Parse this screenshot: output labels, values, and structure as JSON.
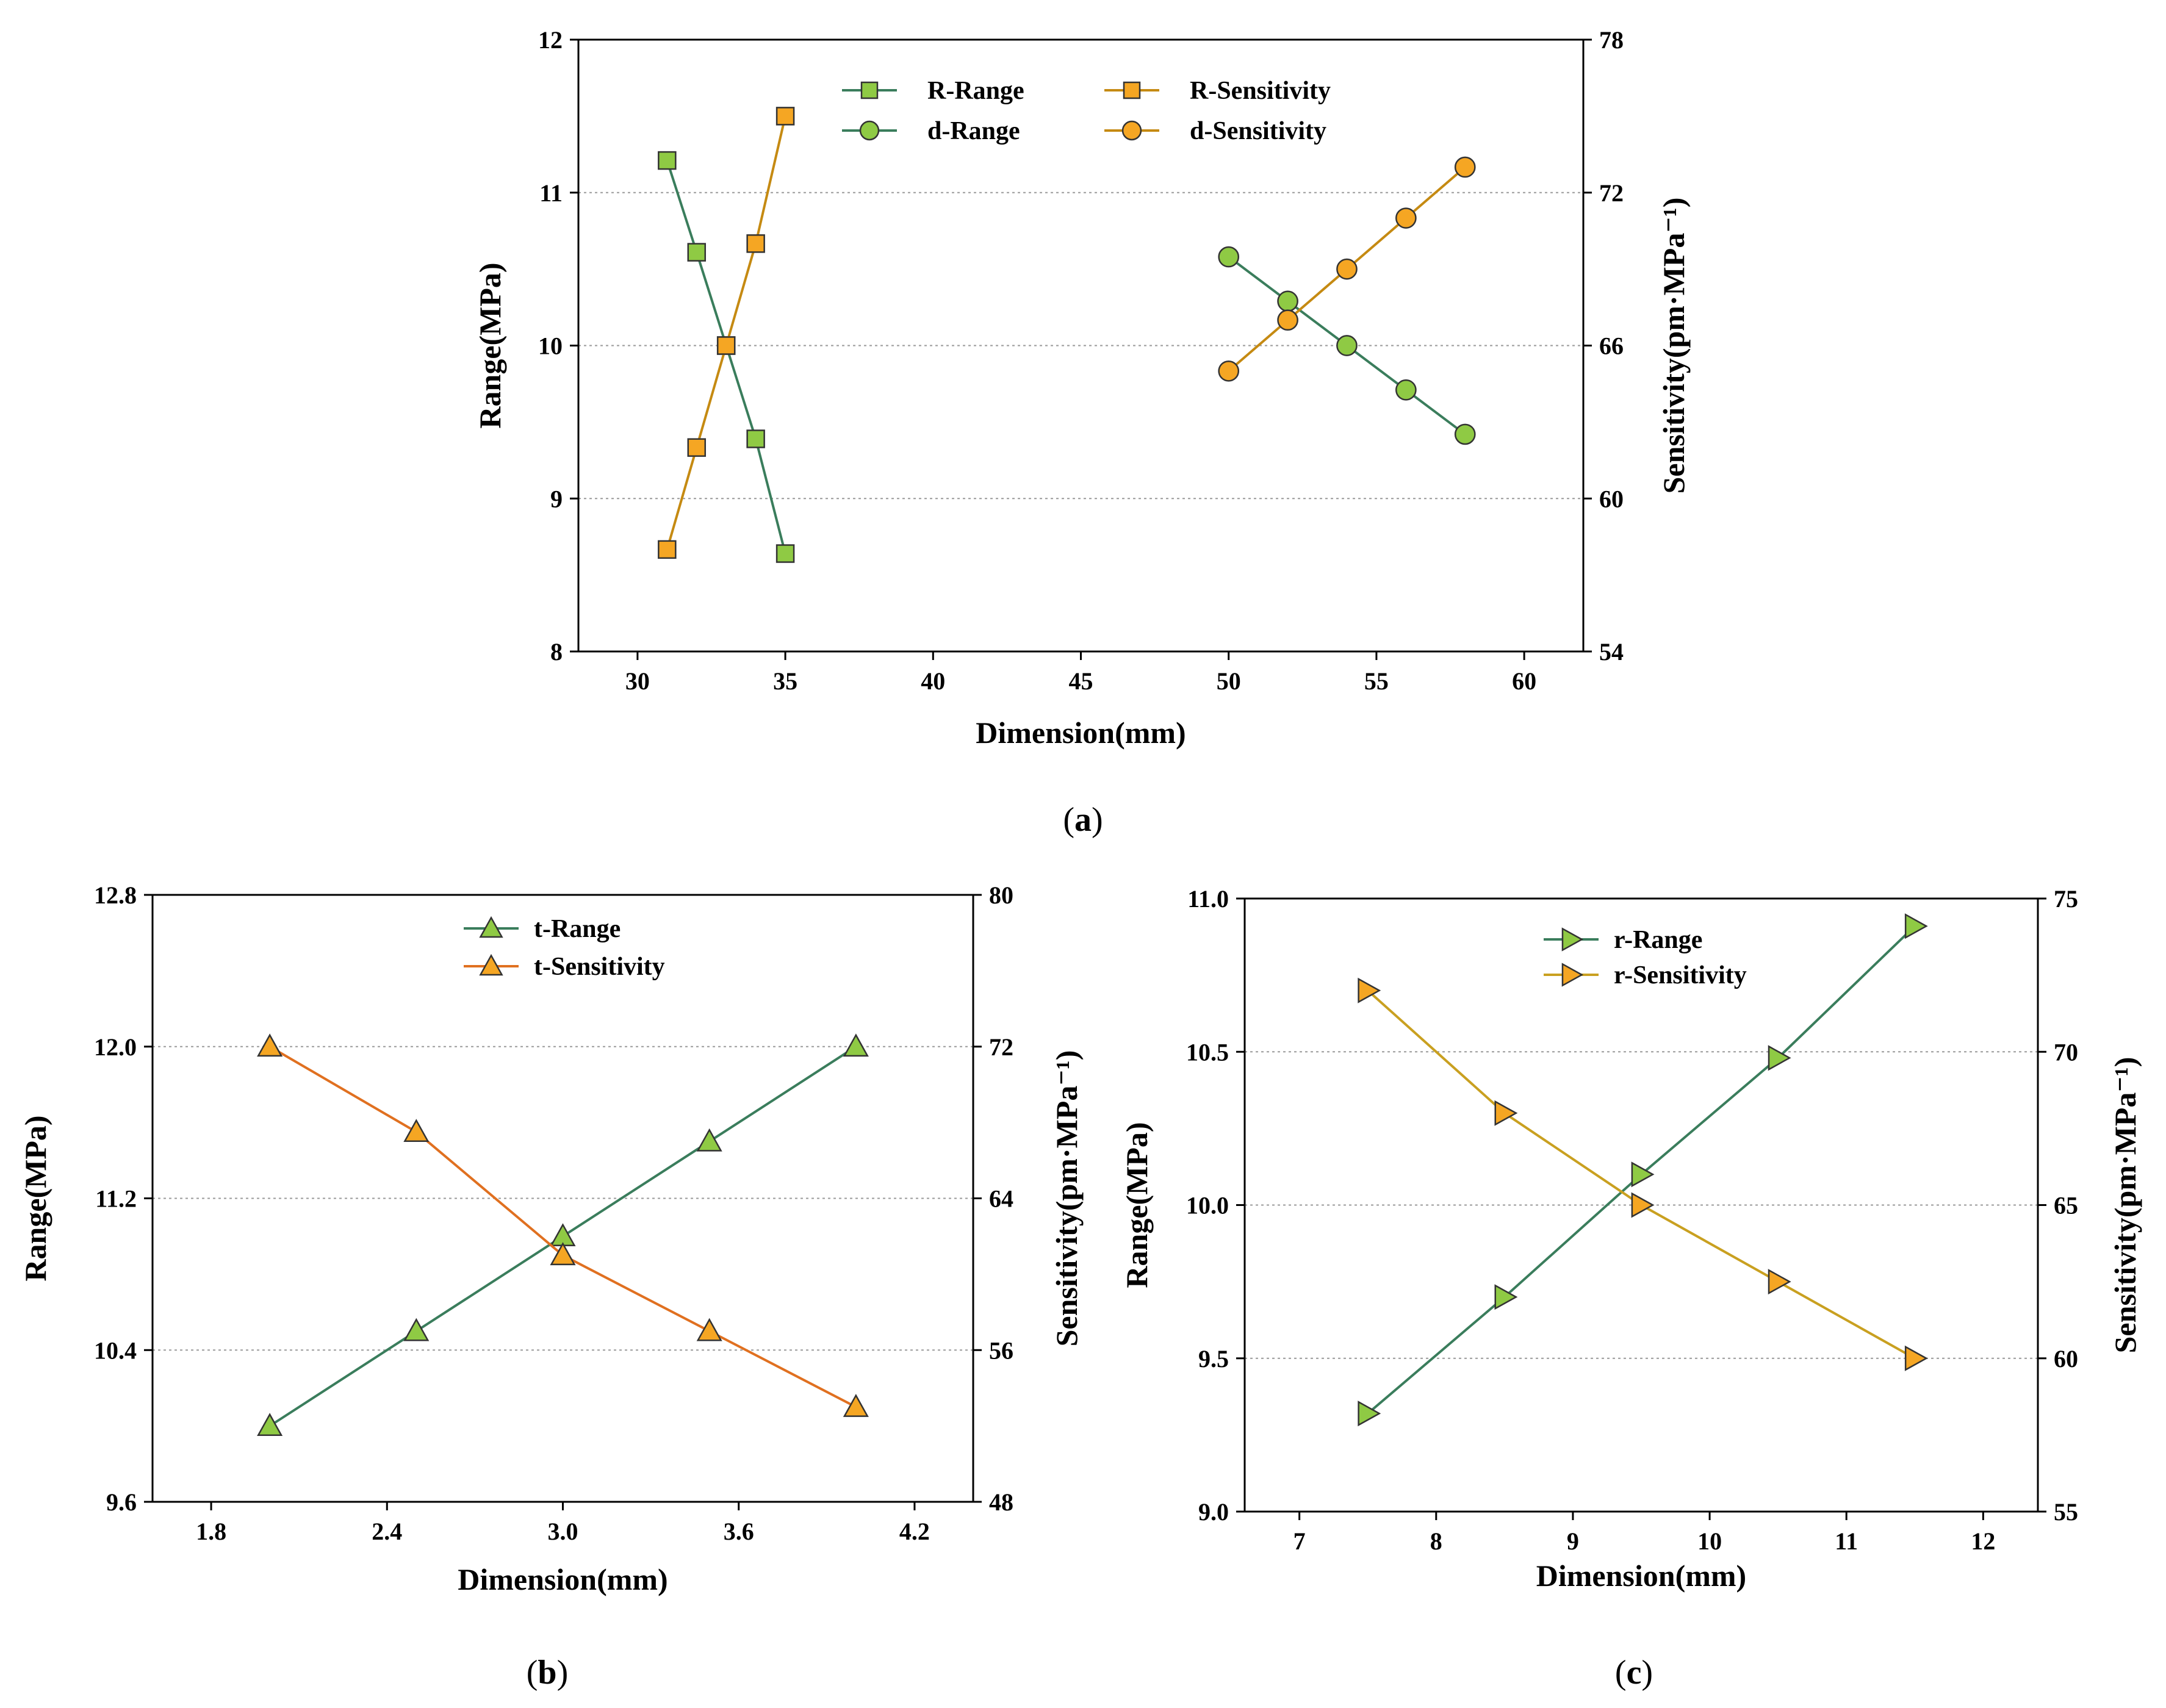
{
  "colors": {
    "range_line": "#3a7d5c",
    "range_fill": "#8fca44",
    "sens_line_a": "#c58a12",
    "sens_line_b": "#e07020",
    "sens_line_c": "#c9a020",
    "sens_fill": "#f5a623",
    "grid": "#9a9a9a"
  },
  "captions": {
    "a": [
      "(",
      "a",
      ")"
    ],
    "b": [
      "(",
      "b",
      ")"
    ],
    "c": [
      "(",
      "c",
      ")"
    ]
  },
  "chart_data": [
    {
      "id": "a",
      "type": "line",
      "xlabel": "Dimension(mm)",
      "ylabel_left": "Range(MPa)",
      "ylabel_right": "Sensitivity(pm·MPa⁻¹)",
      "xlim": [
        28,
        62
      ],
      "xticks": [
        30,
        35,
        40,
        45,
        50,
        55,
        60
      ],
      "xtick_labels": [
        "30",
        "35",
        "40",
        "45",
        "50",
        "55",
        "60"
      ],
      "ylim_left": [
        8,
        12
      ],
      "yticks_left": [
        8,
        9,
        10,
        11,
        12
      ],
      "ytick_labels_left": [
        "8",
        "9",
        "10",
        "11",
        "12"
      ],
      "ylim_right": [
        54,
        78
      ],
      "yticks_right": [
        54,
        60,
        66,
        72,
        78
      ],
      "ytick_labels_right": [
        "54",
        "60",
        "66",
        "72",
        "78"
      ],
      "grid_y": [
        9,
        10,
        11
      ],
      "legend_position": "top-center",
      "series": [
        {
          "name": "R-Range",
          "axis": "left",
          "marker": "square",
          "kind": "range",
          "x": [
            31,
            32,
            33,
            34,
            35
          ],
          "values": [
            11.21,
            10.61,
            10.0,
            9.39,
            8.64
          ]
        },
        {
          "name": "d-Range",
          "axis": "left",
          "marker": "circle",
          "kind": "range",
          "x": [
            50,
            52,
            54,
            56,
            58
          ],
          "values": [
            10.58,
            10.29,
            10.0,
            9.71,
            9.42
          ]
        },
        {
          "name": "R-Sensitivity",
          "axis": "right",
          "marker": "square",
          "kind": "sens",
          "x": [
            31,
            32,
            33,
            34,
            35
          ],
          "values": [
            58.0,
            62.0,
            66.0,
            70.0,
            75.0
          ]
        },
        {
          "name": "d-Sensitivity",
          "axis": "right",
          "marker": "circle",
          "kind": "sens",
          "x": [
            50,
            52,
            54,
            56,
            58
          ],
          "values": [
            65.0,
            67.0,
            69.0,
            71.0,
            73.0
          ]
        }
      ]
    },
    {
      "id": "b",
      "type": "line",
      "xlabel": "Dimension(mm)",
      "ylabel_left": "Range(MPa)",
      "ylabel_right": "Sensitivity(pm·MPa⁻¹)",
      "xlim": [
        1.6,
        4.4
      ],
      "xticks": [
        1.8,
        2.4,
        3.0,
        3.6,
        4.2
      ],
      "xtick_labels": [
        "1.8",
        "2.4",
        "3.0",
        "3.6",
        "4.2"
      ],
      "ylim_left": [
        9.6,
        12.8
      ],
      "yticks_left": [
        9.6,
        10.4,
        11.2,
        12.0,
        12.8
      ],
      "ytick_labels_left": [
        "9.6",
        "10.4",
        "11.2",
        "12.0",
        "12.8"
      ],
      "ylim_right": [
        48,
        80
      ],
      "yticks_right": [
        48,
        56,
        64,
        72,
        80
      ],
      "ytick_labels_right": [
        "48",
        "56",
        "64",
        "72",
        "80"
      ],
      "grid_y": [
        10.4,
        11.2,
        12.0
      ],
      "legend_position": "top-center",
      "series": [
        {
          "name": "t-Range",
          "axis": "left",
          "marker": "triangle-up",
          "kind": "range",
          "x": [
            2.0,
            2.5,
            3.0,
            3.5,
            4.0
          ],
          "values": [
            10.0,
            10.5,
            11.0,
            11.5,
            12.0
          ]
        },
        {
          "name": "t-Sensitivity",
          "axis": "right",
          "marker": "triangle-up",
          "kind": "sens",
          "x": [
            2.0,
            2.5,
            3.0,
            3.5,
            4.0
          ],
          "values": [
            72.0,
            67.5,
            61.0,
            57.0,
            53.0
          ]
        }
      ]
    },
    {
      "id": "c",
      "type": "line",
      "xlabel": "Dimension(mm)",
      "ylabel_left": "Range(MPa)",
      "ylabel_right": "Sensitivity(pm·MPa⁻¹)",
      "xlim": [
        6.6,
        12.4
      ],
      "xticks": [
        7,
        8,
        9,
        10,
        11,
        12
      ],
      "xtick_labels": [
        "7",
        "8",
        "9",
        "10",
        "11",
        "12"
      ],
      "ylim_left": [
        9.0,
        11.0
      ],
      "yticks_left": [
        9.0,
        9.5,
        10.0,
        10.5,
        11.0
      ],
      "ytick_labels_left": [
        "9.0",
        "9.5",
        "10.0",
        "10.5",
        "11.0"
      ],
      "ylim_right": [
        55,
        75
      ],
      "yticks_right": [
        55,
        60,
        65,
        70,
        75
      ],
      "ytick_labels_right": [
        "55",
        "60",
        "65",
        "70",
        "75"
      ],
      "grid_y": [
        9.5,
        10.0,
        10.5
      ],
      "legend_position": "top-center",
      "series": [
        {
          "name": "r-Range",
          "axis": "left",
          "marker": "triangle-right",
          "kind": "range",
          "x": [
            7.5,
            8.5,
            9.5,
            10.5,
            11.5
          ],
          "values": [
            9.32,
            9.7,
            10.1,
            10.48,
            10.91
          ]
        },
        {
          "name": "r-Sensitivity",
          "axis": "right",
          "marker": "triangle-right",
          "kind": "sens",
          "x": [
            7.5,
            8.5,
            9.5,
            10.5,
            11.5
          ],
          "values": [
            72.0,
            68.0,
            65.0,
            62.5,
            60.0
          ]
        }
      ]
    }
  ]
}
